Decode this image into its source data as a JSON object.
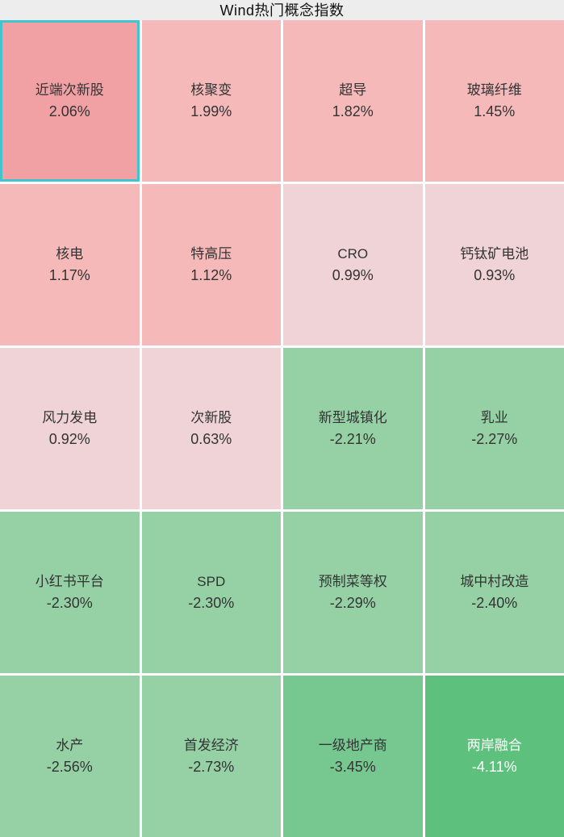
{
  "title": "Wind热门概念指数",
  "palette": {
    "strong_red": "#f1a1a4",
    "pink": "#f5b9ba",
    "pale_pink": "#f0d3d6",
    "light_green": "#95d1a5",
    "mid_green": "#76c790",
    "dark_green": "#5ec07d",
    "selected_border": "#42c4cf",
    "header_bg": "#ededed",
    "gap": "#ffffff",
    "text_dark": "#333333",
    "text_light": "#ffffff"
  },
  "cells": [
    {
      "name": "近端次新股",
      "value": "2.06%",
      "bin": "strong_red",
      "text": "dark",
      "selected": true
    },
    {
      "name": "核聚变",
      "value": "1.99%",
      "bin": "pink",
      "text": "dark",
      "selected": false
    },
    {
      "name": "超导",
      "value": "1.82%",
      "bin": "pink",
      "text": "dark",
      "selected": false
    },
    {
      "name": "玻璃纤维",
      "value": "1.45%",
      "bin": "pink",
      "text": "dark",
      "selected": false
    },
    {
      "name": "核电",
      "value": "1.17%",
      "bin": "pink",
      "text": "dark",
      "selected": false
    },
    {
      "name": "特高压",
      "value": "1.12%",
      "bin": "pink",
      "text": "dark",
      "selected": false
    },
    {
      "name": "CRO",
      "value": "0.99%",
      "bin": "pale_pink",
      "text": "dark",
      "selected": false
    },
    {
      "name": "钙钛矿电池",
      "value": "0.93%",
      "bin": "pale_pink",
      "text": "dark",
      "selected": false
    },
    {
      "name": "风力发电",
      "value": "0.92%",
      "bin": "pale_pink",
      "text": "dark",
      "selected": false
    },
    {
      "name": "次新股",
      "value": "0.63%",
      "bin": "pale_pink",
      "text": "dark",
      "selected": false
    },
    {
      "name": "新型城镇化",
      "value": "-2.21%",
      "bin": "light_green",
      "text": "dark",
      "selected": false
    },
    {
      "name": "乳业",
      "value": "-2.27%",
      "bin": "light_green",
      "text": "dark",
      "selected": false
    },
    {
      "name": "小红书平台",
      "value": "-2.30%",
      "bin": "light_green",
      "text": "dark",
      "selected": false
    },
    {
      "name": "SPD",
      "value": "-2.30%",
      "bin": "light_green",
      "text": "dark",
      "selected": false
    },
    {
      "name": "预制菜等权",
      "value": "-2.29%",
      "bin": "light_green",
      "text": "dark",
      "selected": false
    },
    {
      "name": "城中村改造",
      "value": "-2.40%",
      "bin": "light_green",
      "text": "dark",
      "selected": false
    },
    {
      "name": "水产",
      "value": "-2.56%",
      "bin": "light_green",
      "text": "dark",
      "selected": false
    },
    {
      "name": "首发经济",
      "value": "-2.73%",
      "bin": "light_green",
      "text": "dark",
      "selected": false
    },
    {
      "name": "一级地产商",
      "value": "-3.45%",
      "bin": "mid_green",
      "text": "dark",
      "selected": false
    },
    {
      "name": "两岸融合",
      "value": "-4.11%",
      "bin": "dark_green",
      "text": "light",
      "selected": false
    }
  ],
  "chart_data": {
    "type": "heatmap",
    "title": "Wind热门概念指数",
    "categories": [
      "近端次新股",
      "核聚变",
      "超导",
      "玻璃纤维",
      "核电",
      "特高压",
      "CRO",
      "钙钛矿电池",
      "风力发电",
      "次新股",
      "新型城镇化",
      "乳业",
      "小红书平台",
      "SPD",
      "预制菜等权",
      "城中村改造",
      "水产",
      "首发经济",
      "一级地产商",
      "两岸融合"
    ],
    "values": [
      2.06,
      1.99,
      1.82,
      1.45,
      1.17,
      1.12,
      0.99,
      0.93,
      0.92,
      0.63,
      -2.21,
      -2.27,
      -2.3,
      -2.3,
      -2.29,
      -2.4,
      -2.56,
      -2.73,
      -3.45,
      -4.11
    ],
    "unit": "%",
    "layout": {
      "columns": 4,
      "rows": 5,
      "order": "row-major",
      "color_positive": "red",
      "color_negative": "green"
    }
  }
}
